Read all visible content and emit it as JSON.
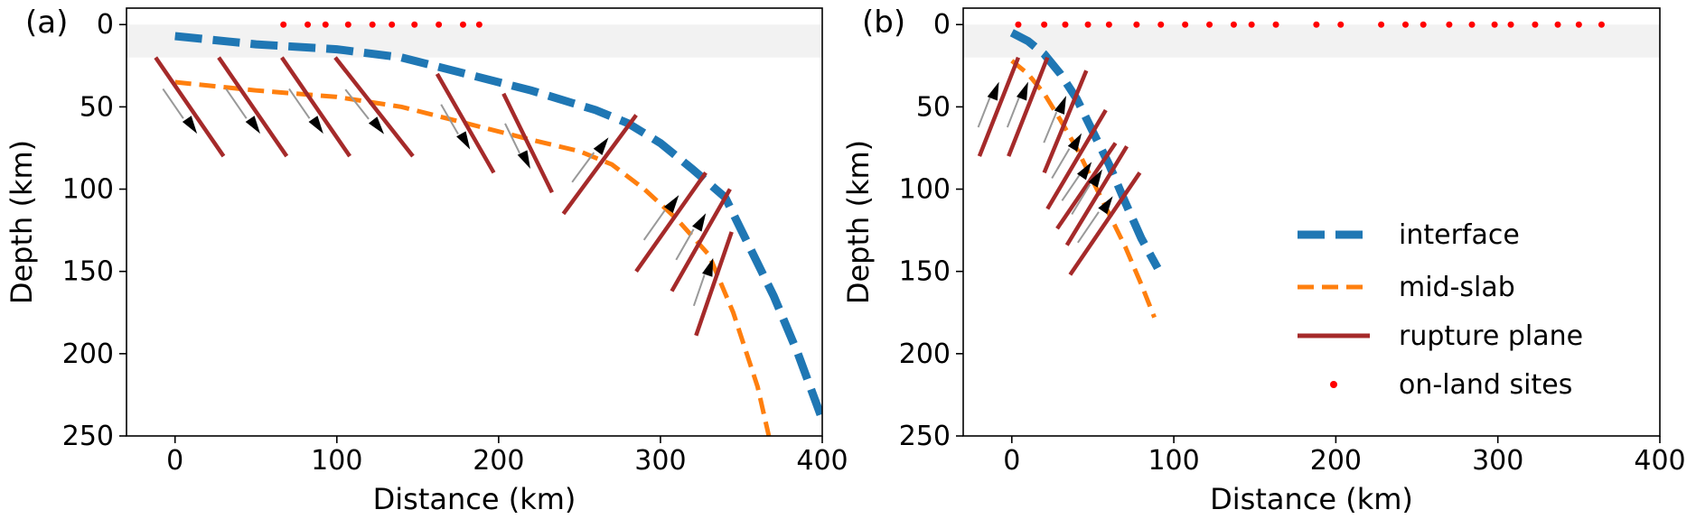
{
  "chart_data": [
    {
      "type": "line",
      "panel_label": "(a)",
      "xlabel": "Distance (km)",
      "ylabel": "Depth (km)",
      "xlim": [
        -30,
        400
      ],
      "ylim": [
        250,
        -10
      ],
      "y_inverted": true,
      "xticks": [
        0,
        100,
        200,
        300,
        400
      ],
      "yticks": [
        0,
        50,
        100,
        150,
        200,
        250
      ],
      "shaded_band": {
        "depth_from": 0,
        "depth_to": 20,
        "color": "#f2f2f2"
      },
      "series": [
        {
          "name": "interface",
          "color": "#1f77b4",
          "style": "dashed-thick",
          "points": [
            [
              0,
              7
            ],
            [
              50,
              12
            ],
            [
              100,
              15
            ],
            [
              140,
              20
            ],
            [
              180,
              30
            ],
            [
              220,
              40
            ],
            [
              260,
              52
            ],
            [
              280,
              60
            ],
            [
              300,
              72
            ],
            [
              320,
              88
            ],
            [
              340,
              105
            ],
            [
              355,
              135
            ],
            [
              370,
              165
            ],
            [
              385,
              200
            ],
            [
              400,
              240
            ]
          ]
        },
        {
          "name": "mid-slab",
          "color": "#ff7f0e",
          "style": "dashed",
          "points": [
            [
              0,
              35
            ],
            [
              50,
              40
            ],
            [
              100,
              44
            ],
            [
              140,
              50
            ],
            [
              180,
              60
            ],
            [
              220,
              70
            ],
            [
              250,
              77
            ],
            [
              270,
              85
            ],
            [
              290,
              100
            ],
            [
              310,
              118
            ],
            [
              330,
              140
            ],
            [
              345,
              175
            ],
            [
              360,
              220
            ],
            [
              367,
              250
            ]
          ]
        },
        {
          "name": "rupture plane",
          "color": "#a52a2a",
          "segments": [
            [
              [
                -12,
                20
              ],
              [
                30,
                80
              ]
            ],
            [
              [
                27,
                20
              ],
              [
                69,
                80
              ]
            ],
            [
              [
                66,
                20
              ],
              [
                108,
                80
              ]
            ],
            [
              [
                99,
                20
              ],
              [
                147,
                80
              ]
            ],
            [
              [
                162,
                30
              ],
              [
                197,
                90
              ]
            ],
            [
              [
                203,
                42
              ],
              [
                233,
                102
              ]
            ],
            [
              [
                240,
                115
              ],
              [
                285,
                55
              ]
            ],
            [
              [
                285,
                150
              ],
              [
                328,
                90
              ]
            ],
            [
              [
                307,
                162
              ],
              [
                343,
                100
              ]
            ],
            [
              [
                322,
                189
              ],
              [
                344,
                126
              ]
            ]
          ]
        },
        {
          "name": "on-land sites",
          "color": "#ff0000",
          "x": [
            67,
            82,
            93,
            107,
            122,
            134,
            148,
            163,
            178,
            188
          ],
          "depth": [
            0,
            0,
            0,
            0,
            0,
            0,
            0,
            0,
            0,
            0
          ]
        }
      ]
    },
    {
      "type": "line",
      "panel_label": "(b)",
      "xlabel": "Distance (km)",
      "ylabel": "Depth (km)",
      "xlim": [
        -30,
        400
      ],
      "ylim": [
        250,
        -10
      ],
      "y_inverted": true,
      "xticks": [
        0,
        100,
        200,
        300,
        400
      ],
      "yticks": [
        0,
        50,
        100,
        150,
        200,
        250
      ],
      "shaded_band": {
        "depth_from": 0,
        "depth_to": 20,
        "color": "#f2f2f2"
      },
      "series": [
        {
          "name": "interface",
          "color": "#1f77b4",
          "style": "dashed-thick",
          "points": [
            [
              0,
              5
            ],
            [
              10,
              10
            ],
            [
              20,
              18
            ],
            [
              30,
              30
            ],
            [
              40,
              45
            ],
            [
              50,
              65
            ],
            [
              60,
              85
            ],
            [
              70,
              108
            ],
            [
              80,
              130
            ],
            [
              90,
              148
            ]
          ]
        },
        {
          "name": "mid-slab",
          "color": "#ff7f0e",
          "style": "dashed",
          "points": [
            [
              0,
              22
            ],
            [
              10,
              30
            ],
            [
              20,
              42
            ],
            [
              30,
              58
            ],
            [
              40,
              75
            ],
            [
              50,
              95
            ],
            [
              60,
              115
            ],
            [
              70,
              135
            ],
            [
              80,
              158
            ],
            [
              88,
              178
            ]
          ]
        },
        {
          "name": "rupture plane",
          "color": "#a52a2a",
          "segments": [
            [
              [
                -20,
                80
              ],
              [
                4,
                20
              ]
            ],
            [
              [
                -2,
                80
              ],
              [
                22,
                20
              ]
            ],
            [
              [
                20,
                90
              ],
              [
                46,
                28
              ]
            ],
            [
              [
                22,
                112
              ],
              [
                58,
                52
              ]
            ],
            [
              [
                28,
                124
              ],
              [
                64,
                72
              ]
            ],
            [
              [
                34,
                134
              ],
              [
                71,
                74
              ]
            ],
            [
              [
                36,
                152
              ],
              [
                79,
                90
              ]
            ]
          ]
        },
        {
          "name": "on-land sites",
          "color": "#ff0000",
          "x": [
            4,
            20,
            33,
            47,
            60,
            77,
            92,
            107,
            122,
            137,
            148,
            163,
            188,
            203,
            228,
            243,
            254,
            270,
            284,
            298,
            308,
            323,
            337,
            350,
            364
          ],
          "depth": [
            0,
            0,
            0,
            0,
            0,
            0,
            0,
            0,
            0,
            0,
            0,
            0,
            0,
            0,
            0,
            0,
            0,
            0,
            0,
            0,
            0,
            0,
            0,
            0,
            0
          ]
        }
      ]
    }
  ],
  "legend": {
    "placement": "lower-right of panel (b)",
    "entries": [
      {
        "label": "interface",
        "color": "#1f77b4",
        "style": "dashed-thick"
      },
      {
        "label": "mid-slab",
        "color": "#ff7f0e",
        "style": "dashed"
      },
      {
        "label": "rupture plane",
        "color": "#a52a2a",
        "style": "solid"
      },
      {
        "label": "on-land sites",
        "color": "#ff0000",
        "style": "dot"
      }
    ]
  }
}
